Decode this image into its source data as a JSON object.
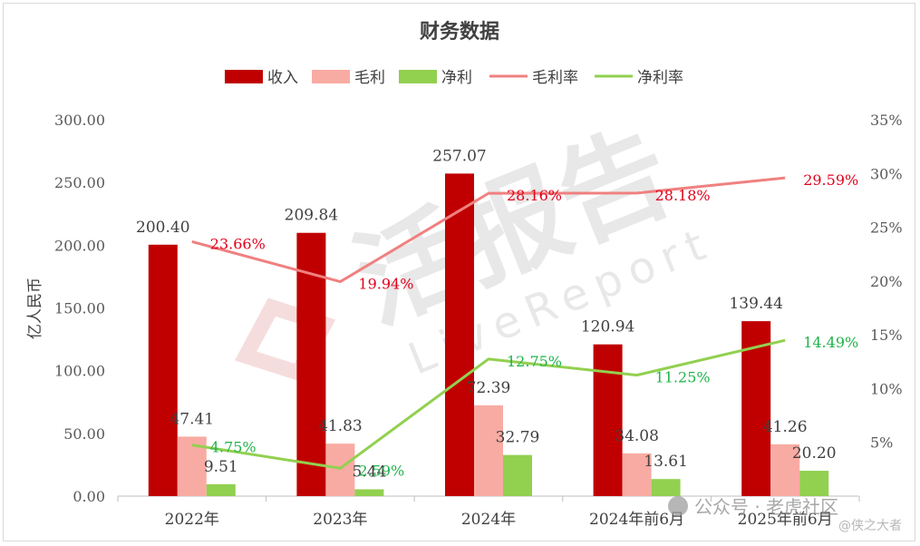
{
  "chart_data": {
    "type": "bar",
    "title": "财务数据",
    "categories": [
      "2022年",
      "2023年",
      "2024年",
      "2024年前6月",
      "2025年前6月"
    ],
    "ylabel": "亿人民币",
    "ylim": [
      0,
      300
    ],
    "y_ticks": [
      "0.00",
      "50.00",
      "100.00",
      "150.00",
      "200.00",
      "250.00",
      "300.00"
    ],
    "y2lim": [
      0,
      35
    ],
    "y2_ticks": [
      "5%",
      "10%",
      "15%",
      "20%",
      "25%",
      "30%",
      "35%"
    ],
    "legend_position": "top-center",
    "grid": false,
    "series": [
      {
        "name": "收入",
        "kind": "bar",
        "color": "#c00000",
        "values": [
          200.4,
          209.84,
          257.07,
          120.94,
          139.44
        ],
        "labels": [
          "200.40",
          "209.84",
          "257.07",
          "120.94",
          "139.44"
        ]
      },
      {
        "name": "毛利",
        "kind": "bar",
        "color": "#f8aba3",
        "values": [
          47.41,
          41.83,
          72.39,
          34.08,
          41.26
        ],
        "labels": [
          "47.41",
          "41.83",
          "72.39",
          "34.08",
          "41.26"
        ]
      },
      {
        "name": "净利",
        "kind": "bar",
        "color": "#92d050",
        "values": [
          9.51,
          5.44,
          32.79,
          13.61,
          20.2
        ],
        "labels": [
          "9.51",
          "5.44",
          "32.79",
          "13.61",
          "20.20"
        ]
      },
      {
        "name": "毛利率",
        "kind": "line",
        "axis": "right",
        "color": "#f08080",
        "label_color": "#e0001b",
        "values": [
          23.66,
          19.94,
          28.16,
          28.18,
          29.59
        ],
        "labels": [
          "23.66%",
          "19.94%",
          "28.16%",
          "28.18%",
          "29.59%"
        ]
      },
      {
        "name": "净利率",
        "kind": "line",
        "axis": "right",
        "color": "#92d050",
        "label_color": "#1fb34a",
        "values": [
          4.75,
          2.59,
          12.75,
          11.25,
          14.49
        ],
        "labels": [
          "4.75%",
          "2.59%",
          "12.75%",
          "11.25%",
          "14.49%"
        ]
      }
    ]
  },
  "watermark": {
    "brand_text": "活报告",
    "brand_sub": "LiveReport",
    "account": "公众号 · 老虎社区",
    "handle": "@侠之大者"
  }
}
